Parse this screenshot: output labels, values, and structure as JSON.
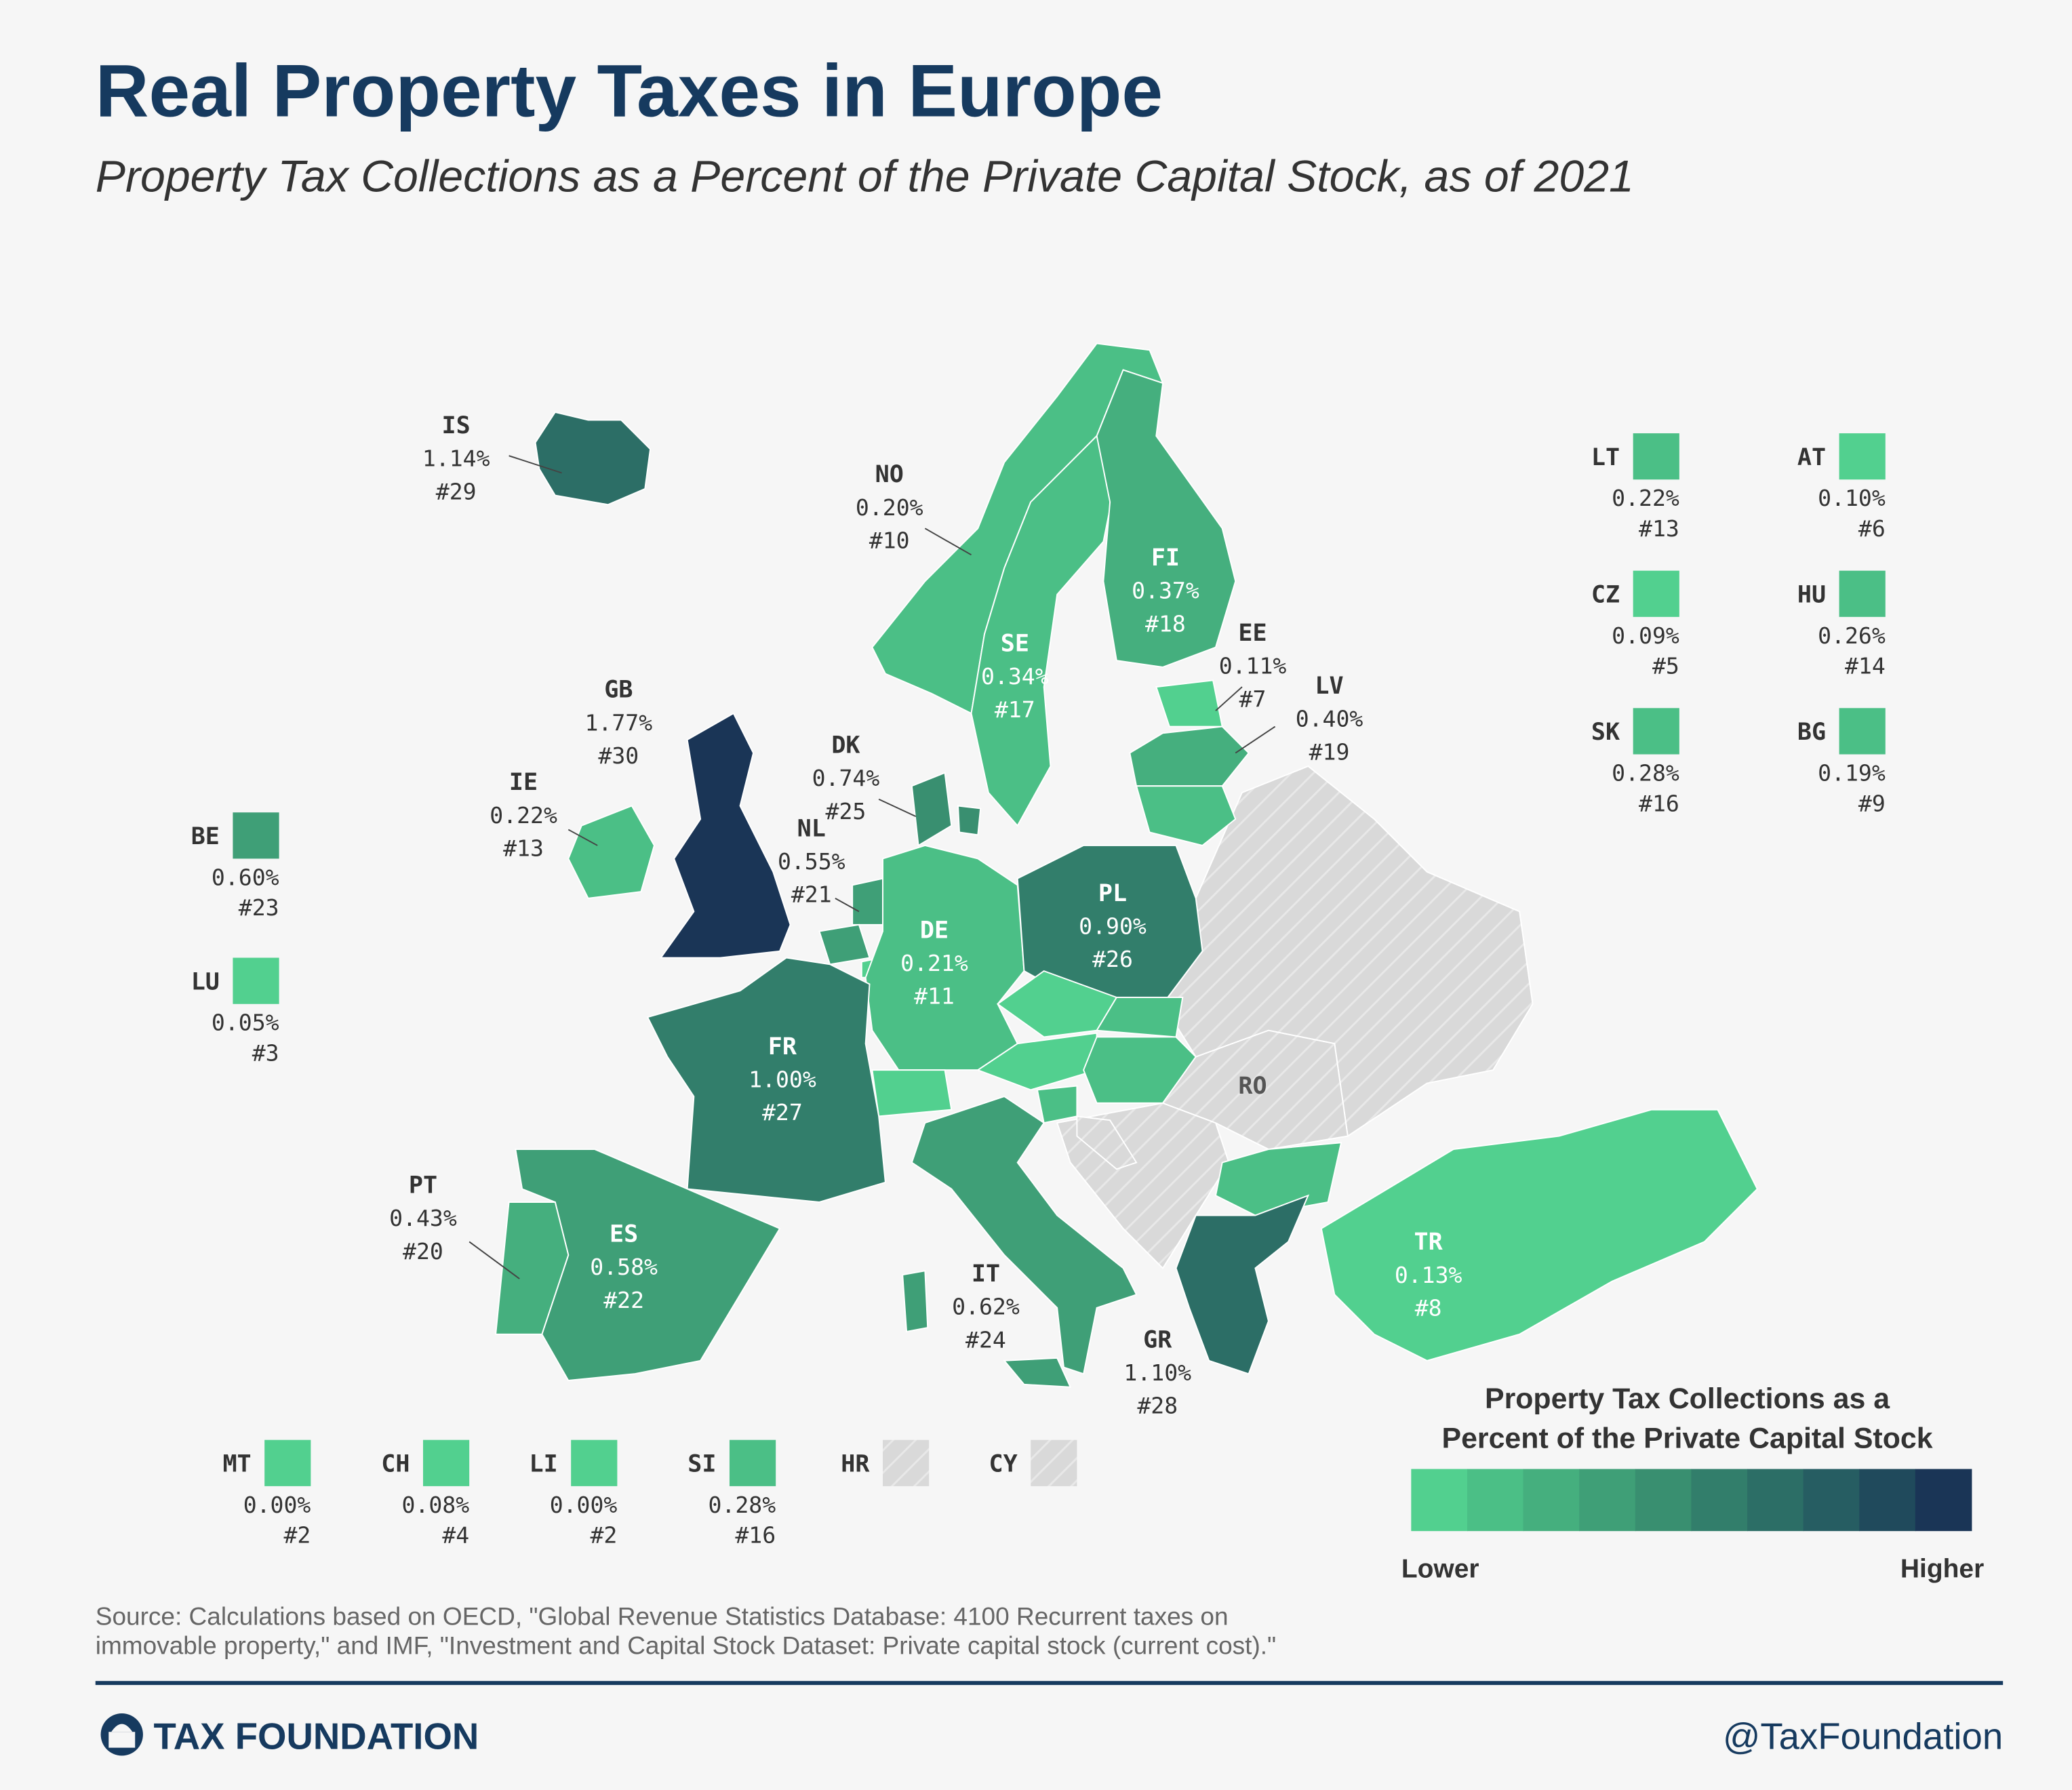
{
  "header": {
    "title": "Real Property Taxes in Europe",
    "subtitle": "Property Tax Collections as a Percent of the Private Capital Stock, as of 2021"
  },
  "map": {
    "countries": [
      {
        "code": "IS",
        "value": 1.14,
        "label": "1.14%",
        "rank": "#29"
      },
      {
        "code": "NO",
        "value": 0.2,
        "label": "0.20%",
        "rank": "#10"
      },
      {
        "code": "SE",
        "value": 0.34,
        "label": "0.34%",
        "rank": "#17"
      },
      {
        "code": "FI",
        "value": 0.37,
        "label": "0.37%",
        "rank": "#18"
      },
      {
        "code": "EE",
        "value": 0.11,
        "label": "0.11%",
        "rank": "#7"
      },
      {
        "code": "LV",
        "value": 0.4,
        "label": "0.40%",
        "rank": "#19"
      },
      {
        "code": "LT",
        "value": 0.22,
        "label": "0.22%",
        "rank": "#13"
      },
      {
        "code": "DK",
        "value": 0.74,
        "label": "0.74%",
        "rank": "#25"
      },
      {
        "code": "GB",
        "value": 1.77,
        "label": "1.77%",
        "rank": "#30"
      },
      {
        "code": "IE",
        "value": 0.22,
        "label": "0.22%",
        "rank": "#13"
      },
      {
        "code": "NL",
        "value": 0.55,
        "label": "0.55%",
        "rank": "#21"
      },
      {
        "code": "BE",
        "value": 0.6,
        "label": "0.60%",
        "rank": "#23"
      },
      {
        "code": "LU",
        "value": 0.05,
        "label": "0.05%",
        "rank": "#3"
      },
      {
        "code": "DE",
        "value": 0.21,
        "label": "0.21%",
        "rank": "#11"
      },
      {
        "code": "PL",
        "value": 0.9,
        "label": "0.90%",
        "rank": "#26"
      },
      {
        "code": "CZ",
        "value": 0.09,
        "label": "0.09%",
        "rank": "#5"
      },
      {
        "code": "SK",
        "value": 0.28,
        "label": "0.28%",
        "rank": "#16"
      },
      {
        "code": "AT",
        "value": 0.1,
        "label": "0.10%",
        "rank": "#6"
      },
      {
        "code": "HU",
        "value": 0.26,
        "label": "0.26%",
        "rank": "#14"
      },
      {
        "code": "CH",
        "value": 0.08,
        "label": "0.08%",
        "rank": "#4"
      },
      {
        "code": "LI",
        "value": 0.0,
        "label": "0.00%",
        "rank": "#2"
      },
      {
        "code": "SI",
        "value": 0.28,
        "label": "0.28%",
        "rank": "#16"
      },
      {
        "code": "FR",
        "value": 1.0,
        "label": "1.00%",
        "rank": "#27"
      },
      {
        "code": "ES",
        "value": 0.58,
        "label": "0.58%",
        "rank": "#22"
      },
      {
        "code": "PT",
        "value": 0.43,
        "label": "0.43%",
        "rank": "#20"
      },
      {
        "code": "IT",
        "value": 0.62,
        "label": "0.62%",
        "rank": "#24"
      },
      {
        "code": "MT",
        "value": 0.0,
        "label": "0.00%",
        "rank": "#2"
      },
      {
        "code": "HR"
      },
      {
        "code": "RO"
      },
      {
        "code": "BG",
        "value": 0.19,
        "label": "0.19%",
        "rank": "#9"
      },
      {
        "code": "GR",
        "value": 1.1,
        "label": "1.10%",
        "rank": "#28"
      },
      {
        "code": "TR",
        "value": 0.13,
        "label": "0.13%",
        "rank": "#8"
      },
      {
        "code": "CY"
      }
    ],
    "colors": [
      "#52d08f",
      "#4bbf86",
      "#45af7e",
      "#3f9f77",
      "#398f70",
      "#327e6b",
      "#2c6e66",
      "#265d62",
      "#204a5c",
      "#1a3556"
    ],
    "legend": {
      "title": [
        "Property Tax Collections as a",
        "Percent of the Private Capital Stock"
      ],
      "low": "Lower",
      "high": "Higher"
    }
  },
  "footer": {
    "source": [
      "Source: Calculations based on OECD, \"Global Revenue Statistics Database: 4100 Recurrent taxes on",
      "immovable property,\" and IMF, \"Investment and Capital Stock Dataset: Private capital stock (current cost).\""
    ],
    "brand": "TAX FOUNDATION",
    "handle": "@TaxFoundation"
  }
}
